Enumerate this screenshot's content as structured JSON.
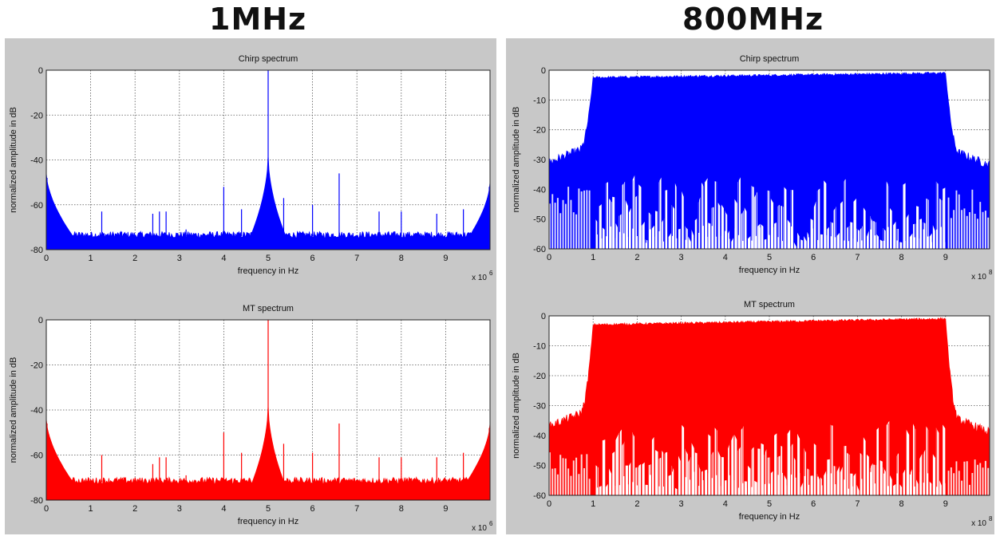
{
  "headings": {
    "left": "1MHz",
    "right": "800MHz"
  },
  "colors": {
    "chirp": "#0000ff",
    "mt": "#ff0000",
    "panel_bg": "#c8c8c8",
    "grid": "#555555"
  },
  "chart_data": [
    {
      "id": "chirp_1mhz",
      "type": "area",
      "title": "Chirp spectrum",
      "xlabel": "frequency in Hz",
      "ylabel": "normalized amplitude in dB",
      "xexp": "x 10",
      "xexp_sup": "6",
      "xlim": [
        0,
        10
      ],
      "ylim": [
        -80,
        0
      ],
      "xticks": [
        "0",
        "1",
        "2",
        "3",
        "4",
        "5",
        "6",
        "7",
        "8",
        "9"
      ],
      "yticks": [
        "0",
        "-20",
        "-40",
        "-60",
        "-80"
      ],
      "grid": true,
      "color": "#0000ff",
      "noise_floor_db": -74,
      "edge_peaks": [
        {
          "x": 0,
          "y": -48
        },
        {
          "x": 10,
          "y": -52
        }
      ],
      "peaks": [
        {
          "x": 1.25,
          "y": -63
        },
        {
          "x": 1.7,
          "y": -72
        },
        {
          "x": 2.4,
          "y": -64
        },
        {
          "x": 2.55,
          "y": -63
        },
        {
          "x": 2.7,
          "y": -63
        },
        {
          "x": 3.15,
          "y": -71
        },
        {
          "x": 4.0,
          "y": -52
        },
        {
          "x": 4.4,
          "y": -62
        },
        {
          "x": 5.0,
          "y": 0
        },
        {
          "x": 5.35,
          "y": -57
        },
        {
          "x": 6.0,
          "y": -60
        },
        {
          "x": 6.6,
          "y": -46
        },
        {
          "x": 7.5,
          "y": -63
        },
        {
          "x": 8.0,
          "y": -63
        },
        {
          "x": 8.8,
          "y": -64
        },
        {
          "x": 9.4,
          "y": -62
        }
      ]
    },
    {
      "id": "chirp_800mhz",
      "type": "area",
      "title": "Chirp spectrum",
      "xlabel": "frequency in Hz",
      "ylabel": "normalized amplitude in dB",
      "xexp": "x 10",
      "xexp_sup": "8",
      "xlim": [
        0,
        10
      ],
      "ylim": [
        -60,
        0
      ],
      "xticks": [
        "0",
        "1",
        "2",
        "3",
        "4",
        "5",
        "6",
        "7",
        "8",
        "9"
      ],
      "yticks": [
        "0",
        "-10",
        "-20",
        "-30",
        "-40",
        "-50",
        "-60"
      ],
      "grid": true,
      "color": "#0000ff",
      "band": [
        1,
        9
      ],
      "band_top_db": [
        -2.5,
        -1
      ],
      "outband_db": [
        -31,
        -32
      ],
      "inband_floor_db": -37,
      "inband_dips_db": -58
    },
    {
      "id": "mt_1mhz",
      "type": "area",
      "title": "MT spectrum",
      "xlabel": "frequency in Hz",
      "ylabel": "normalized amplitude in dB",
      "xexp": "x 10",
      "xexp_sup": "6",
      "xlim": [
        0,
        10
      ],
      "ylim": [
        -80,
        0
      ],
      "xticks": [
        "0",
        "1",
        "2",
        "3",
        "4",
        "5",
        "6",
        "7",
        "8",
        "9"
      ],
      "yticks": [
        "0",
        "-20",
        "-40",
        "-60",
        "-80"
      ],
      "grid": true,
      "color": "#ff0000",
      "noise_floor_db": -72,
      "edge_peaks": [
        {
          "x": 0,
          "y": -46
        },
        {
          "x": 10,
          "y": -48
        }
      ],
      "peaks": [
        {
          "x": 1.25,
          "y": -60
        },
        {
          "x": 1.75,
          "y": -70
        },
        {
          "x": 2.4,
          "y": -64
        },
        {
          "x": 2.55,
          "y": -61
        },
        {
          "x": 2.7,
          "y": -61
        },
        {
          "x": 3.15,
          "y": -69
        },
        {
          "x": 4.0,
          "y": -50
        },
        {
          "x": 4.4,
          "y": -59
        },
        {
          "x": 5.0,
          "y": 0
        },
        {
          "x": 5.35,
          "y": -55
        },
        {
          "x": 6.0,
          "y": -59
        },
        {
          "x": 6.6,
          "y": -46
        },
        {
          "x": 7.5,
          "y": -61
        },
        {
          "x": 8.0,
          "y": -61
        },
        {
          "x": 8.8,
          "y": -61
        },
        {
          "x": 9.4,
          "y": -59
        }
      ]
    },
    {
      "id": "mt_800mhz",
      "type": "area",
      "title": "MT spectrum",
      "xlabel": "frequency in Hz",
      "ylabel": "normalized amplitude in dB",
      "xexp": "x 10",
      "xexp_sup": "8",
      "xlim": [
        0,
        10
      ],
      "ylim": [
        -60,
        0
      ],
      "xticks": [
        "0",
        "1",
        "2",
        "3",
        "4",
        "5",
        "6",
        "7",
        "8",
        "9"
      ],
      "yticks": [
        "0",
        "-10",
        "-20",
        "-30",
        "-40",
        "-50",
        "-60"
      ],
      "grid": true,
      "color": "#ff0000",
      "band": [
        1,
        9
      ],
      "band_top_db": [
        -3,
        -1
      ],
      "outband_db": [
        -37,
        -39
      ],
      "inband_floor_db": -36,
      "inband_dips_db": -58
    }
  ]
}
